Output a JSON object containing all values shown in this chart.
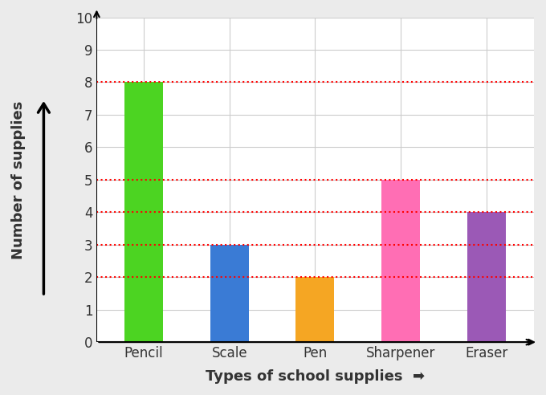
{
  "categories": [
    "Pencil",
    "Scale",
    "Pen",
    "Sharpener",
    "Eraser"
  ],
  "values": [
    8,
    3,
    2,
    5,
    4
  ],
  "bar_colors": [
    "#4cd422",
    "#3a7bd5",
    "#f5a623",
    "#ff6eb4",
    "#9b59b6"
  ],
  "xlabel": "Types of school supplies",
  "ylabel": "Number of supplies",
  "ylim": [
    0,
    10
  ],
  "yticks": [
    0,
    1,
    2,
    3,
    4,
    5,
    6,
    7,
    8,
    9,
    10
  ],
  "background_color": "#ebebeb",
  "plot_bg_color": "#ffffff",
  "grid_color": "#cccccc",
  "dashed_lines": [
    8,
    5,
    4,
    3,
    2
  ],
  "dashed_color": "#ff0000",
  "axis_label_fontsize": 13,
  "tick_fontsize": 12,
  "bar_width": 0.45
}
